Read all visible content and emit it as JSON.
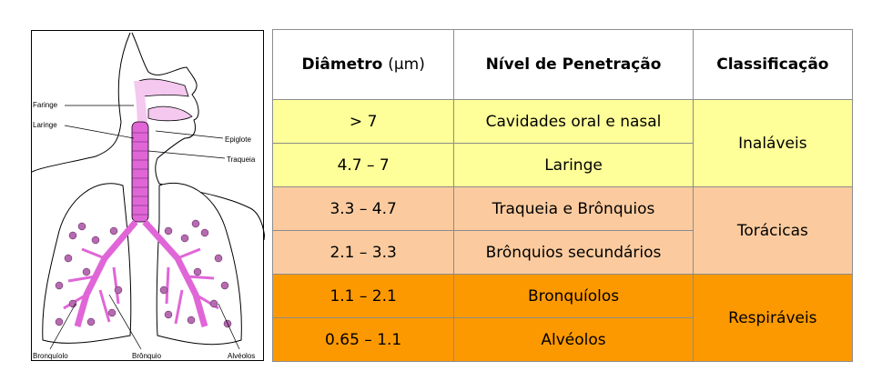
{
  "illustration": {
    "labels": {
      "faringe": "Faringe",
      "laringe": "Laringe",
      "epiglote": "Epiglote",
      "traqueia": "Traqueia",
      "bronquiolo": "Bronquíolo",
      "bronquio": "Brônquio",
      "alveolos": "Alvéolos"
    },
    "colors": {
      "airway": "#e066d8",
      "lung_outline": "#000000",
      "alveoli": "#8a3d86"
    }
  },
  "table": {
    "headers": {
      "diameter_bold": "Diâmetro",
      "diameter_unit": "(µm)",
      "penetration": "Nível de Penetração",
      "classification": "Classificação"
    },
    "rows": [
      {
        "diameter": "> 7",
        "level": "Cavidades oral e nasal"
      },
      {
        "diameter": "4.7 – 7",
        "level": "Laringe"
      },
      {
        "diameter": "3.3 – 4.7",
        "level": "Traqueia e Brônquios"
      },
      {
        "diameter": "2.1 – 3.3",
        "level": "Brônquios secundários"
      },
      {
        "diameter": "1.1 – 2.1",
        "level": "Bronquíolos"
      },
      {
        "diameter": "0.65 – 1.1",
        "level": "Alvéolos"
      }
    ],
    "groups": [
      {
        "label": "Inaláveis",
        "color": "#ffff99"
      },
      {
        "label": "Torácicas",
        "color": "#fbcb9f"
      },
      {
        "label": "Respiráveis",
        "color": "#fd9900"
      }
    ]
  }
}
